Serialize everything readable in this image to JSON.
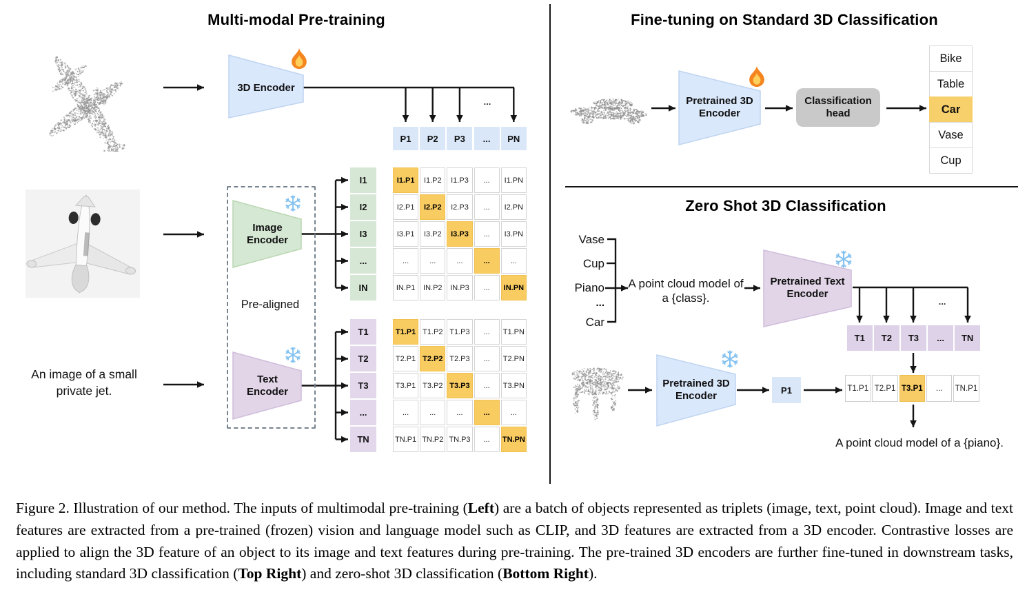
{
  "colors": {
    "encoder_blue": "#dae8fc",
    "encoder_green": "#d5e8d4",
    "encoder_purple": "#e1d5e7",
    "highlight_orange": "#f8cd64",
    "head_gray": "#c9c9c9",
    "arrow_black": "#141414",
    "point_cloud_gray": "#9a9a9a"
  },
  "left": {
    "title": "Multi-modal Pre-training",
    "encoder_3d": {
      "label": "3D Encoder",
      "icon": "flame-icon"
    },
    "p_row": [
      "P1",
      "P2",
      "P3",
      "...",
      "PN"
    ],
    "dots_above_pn": "...",
    "image_encoder": {
      "label_lines": [
        "Image",
        "Encoder"
      ],
      "icon": "snowflake-icon"
    },
    "text_encoder": {
      "label_lines": [
        "Text",
        "Encoder"
      ],
      "icon": "snowflake-icon"
    },
    "pre_aligned": "Pre-aligned",
    "image_rows": [
      "I1",
      "I2",
      "I3",
      "...",
      "IN"
    ],
    "text_rows": [
      "T1",
      "T2",
      "T3",
      "...",
      "TN"
    ],
    "image_matrix": [
      [
        "I1.P1",
        "I1.P2",
        "I1.P3",
        "...",
        "I1.PN"
      ],
      [
        "I2.P1",
        "I2.P2",
        "I2.P3",
        "...",
        "I2.PN"
      ],
      [
        "I3.P1",
        "I3.P2",
        "I3.P3",
        "...",
        "I3.PN"
      ],
      [
        "...",
        "...",
        "...",
        "...",
        "..."
      ],
      [
        "IN.P1",
        "IN.P2",
        "IN.P3",
        "...",
        "IN.PN"
      ]
    ],
    "text_matrix": [
      [
        "T1.P1",
        "T1.P2",
        "T1.P3",
        "...",
        "T1.PN"
      ],
      [
        "T2.P1",
        "T2.P2",
        "T2.P3",
        "...",
        "T2.PN"
      ],
      [
        "T3.P1",
        "T3.P2",
        "T3.P3",
        "...",
        "T3.PN"
      ],
      [
        "...",
        "...",
        "...",
        "...",
        "..."
      ],
      [
        "TN.P1",
        "TN.P2",
        "TN.P3",
        "...",
        "TN.PN"
      ]
    ],
    "jet_caption_lines": [
      "An image of a small",
      "private jet."
    ]
  },
  "top_right": {
    "title": "Fine-tuning on Standard 3D Classification",
    "encoder": {
      "label_lines": [
        "Pretrained 3D",
        "Encoder"
      ],
      "icon": "flame-icon"
    },
    "head": {
      "label_lines": [
        "Classification",
        "head"
      ]
    },
    "classes": [
      {
        "label": "Bike",
        "highlight": false
      },
      {
        "label": "Table",
        "highlight": false
      },
      {
        "label": "Car",
        "highlight": true
      },
      {
        "label": "Vase",
        "highlight": false
      },
      {
        "label": "Cup",
        "highlight": false
      }
    ]
  },
  "bottom_right": {
    "title": "Zero Shot 3D Classification",
    "class_prompts": [
      "Vase",
      "Cup",
      "Piano",
      "...",
      "Car"
    ],
    "prompt_lines": [
      "A point cloud model of",
      "a {class}."
    ],
    "text_encoder": {
      "label_lines": [
        "Pretrained Text",
        "Encoder"
      ],
      "icon": "snowflake-icon"
    },
    "t_row": [
      "T1",
      "T2",
      "T3",
      "...",
      "TN"
    ],
    "dots_above_tn": "...",
    "encoder_3d": {
      "label_lines": [
        "Pretrained 3D",
        "Encoder"
      ],
      "icon": "snowflake-icon"
    },
    "p_cell": "P1",
    "result_row": [
      {
        "label": "T1.P1",
        "highlight": false
      },
      {
        "label": "T2.P1",
        "highlight": false
      },
      {
        "label": "T3.P1",
        "highlight": true
      },
      {
        "label": "...",
        "highlight": false
      },
      {
        "label": "TN.P1",
        "highlight": false
      }
    ],
    "answer": "A point cloud model of a {piano}."
  },
  "caption": {
    "segments": [
      {
        "text": "Figure 2. Illustration of our method. The inputs of multimodal pre-training ("
      },
      {
        "text": "Left",
        "bold": true
      },
      {
        "text": ") are a batch of objects represented as triplets (image, text, point cloud). Image and text features are extracted from a pre-trained (frozen) vision and language model such as CLIP, and 3D features are extracted from a 3D encoder. Contrastive losses are applied to align the 3D feature of an object to its image and text features during pre-training. The pre-trained 3D encoders are further fine-tuned in downstream tasks, including standard 3D classification ("
      },
      {
        "text": "Top Right",
        "bold": true
      },
      {
        "text": ") and zero-shot 3D classification ("
      },
      {
        "text": "Bottom Right",
        "bold": true
      },
      {
        "text": ")."
      }
    ]
  }
}
